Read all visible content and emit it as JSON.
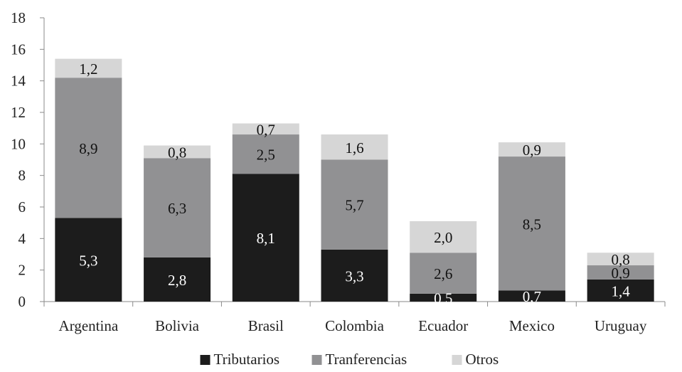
{
  "chart_data": {
    "type": "bar",
    "stacked": true,
    "categories": [
      "Argentina",
      "Bolivia",
      "Brasil",
      "Colombia",
      "Ecuador",
      "Mexico",
      "Uruguay"
    ],
    "series": [
      {
        "name": "Tributarios",
        "values": [
          5.3,
          2.8,
          8.1,
          3.3,
          0.5,
          0.7,
          1.4
        ],
        "labels": [
          "5,3",
          "2,8",
          "8,1",
          "3,3",
          "0,5",
          "0,7",
          "1,4"
        ],
        "color": "#1c1c1c",
        "label_color": "#ffffff"
      },
      {
        "name": "Tranferencias",
        "values": [
          8.9,
          6.3,
          2.5,
          5.7,
          2.6,
          8.5,
          0.9
        ],
        "labels": [
          "8,9",
          "6,3",
          "2,5",
          "5,7",
          "2,6",
          "8,5",
          "0,9"
        ],
        "color": "#919193",
        "label_color": "#111111"
      },
      {
        "name": "Otros",
        "values": [
          1.2,
          0.8,
          0.7,
          1.6,
          2.0,
          0.9,
          0.8
        ],
        "labels": [
          "1,2",
          "0,8",
          "0,7",
          "1,6",
          "2,0",
          "0,9",
          "0,8"
        ],
        "color": "#d6d6d6",
        "label_color": "#111111"
      }
    ],
    "y_ticks": [
      "0",
      "2",
      "4",
      "6",
      "8",
      "10",
      "12",
      "14",
      "16",
      "18"
    ],
    "ylim": [
      0,
      18
    ],
    "grid": false,
    "legend_position": "bottom"
  }
}
